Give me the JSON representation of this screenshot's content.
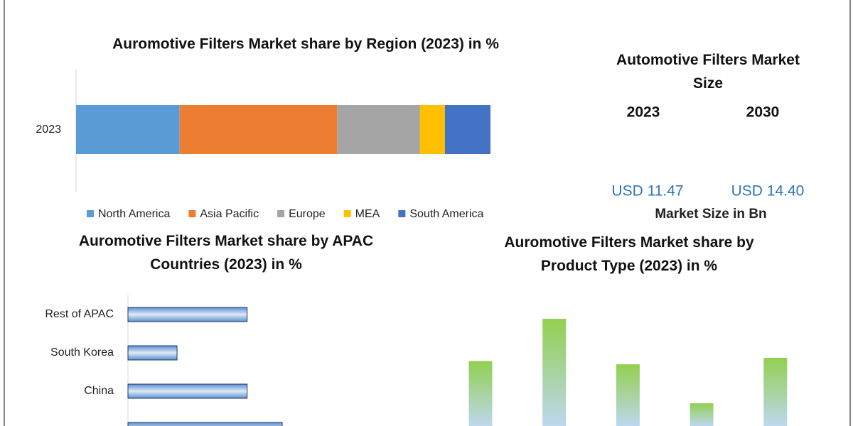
{
  "chart_data": [
    {
      "type": "stacked-bar",
      "title": "Auromotive Filters Market share by Region (2023) in %",
      "categories": [
        "2023"
      ],
      "series": [
        {
          "name": "North America",
          "color": "#5b9bd5",
          "values": [
            25
          ]
        },
        {
          "name": "Asia Pacific",
          "color": "#ed7d31",
          "values": [
            38
          ]
        },
        {
          "name": "Europe",
          "color": "#a5a5a5",
          "values": [
            20
          ]
        },
        {
          "name": "MEA",
          "color": "#ffc000",
          "values": [
            6
          ]
        },
        {
          "name": "South America",
          "color": "#4472c4",
          "values": [
            11
          ]
        }
      ],
      "legend": "bottom"
    },
    {
      "type": "hbar",
      "title": "Auromotive Filters Market share by APAC Countries (2023) in %",
      "categories": [
        "Rest of APAC",
        "South Korea",
        "China",
        null
      ],
      "values": [
        17,
        7,
        17,
        22
      ],
      "color": "#9dc3e6"
    },
    {
      "type": "column",
      "title": "Auromotive Filters Market share by Product Type (2023) in %",
      "categories": [
        null,
        null,
        null,
        null,
        null
      ],
      "values": [
        20,
        33,
        19,
        7,
        21
      ],
      "color": "#92d050"
    }
  ],
  "market_size": {
    "title": "Automotive Filters Market Size",
    "years": [
      "2023",
      "2030"
    ],
    "amounts": [
      "USD 11.47",
      "USD 14.40"
    ],
    "unit": "Market Size in Bn"
  }
}
